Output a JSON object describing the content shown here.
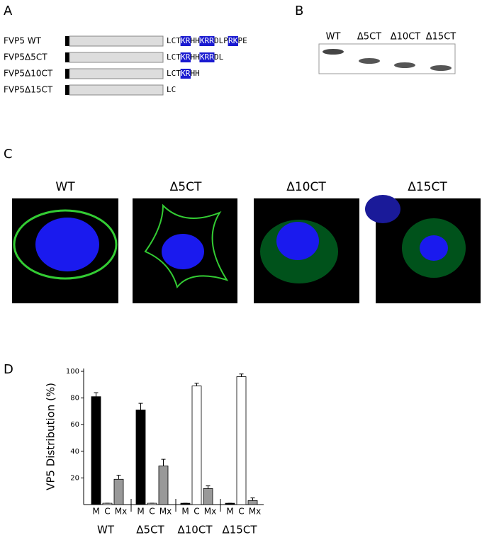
{
  "panels": {
    "a": "A",
    "b": "B",
    "c": "C",
    "d": "D"
  },
  "schematic": {
    "rows": [
      {
        "label": "FVP5 WT",
        "sequence": [
          [
            "LCT",
            false
          ],
          [
            "KR",
            true
          ],
          [
            "HH",
            false
          ],
          [
            "KRR",
            true
          ],
          [
            "DLP",
            false
          ],
          [
            "RK",
            true
          ],
          [
            "PE",
            false
          ]
        ]
      },
      {
        "label": "FVP5Δ5CT",
        "sequence": [
          [
            "LCT",
            false
          ],
          [
            "KR",
            true
          ],
          [
            "HH",
            false
          ],
          [
            "KRR",
            true
          ],
          [
            "DL",
            false
          ]
        ]
      },
      {
        "label": "FVP5Δ10CT",
        "sequence": [
          [
            "LCT",
            false
          ],
          [
            "KR",
            true
          ],
          [
            "HH",
            false
          ]
        ]
      },
      {
        "label": "FVP5Δ15CT",
        "sequence": [
          [
            "LC",
            false
          ]
        ]
      }
    ]
  },
  "gel": {
    "lanes": [
      "WT",
      "Δ5CT",
      "Δ10CT",
      "Δ15CT"
    ]
  },
  "images": {
    "labels": [
      "WT",
      "Δ5CT",
      "Δ10CT",
      "Δ15CT"
    ]
  },
  "chart_data": {
    "type": "grouped_bar",
    "y_label": "VP5 Distribution (%)",
    "categories": [
      "WT",
      "Δ5CT",
      "Δ10CT",
      "Δ15CT"
    ],
    "series": [
      {
        "name": "M",
        "color": "#000000",
        "values": [
          81,
          71,
          1,
          1
        ],
        "errors": [
          3,
          5,
          0,
          0
        ]
      },
      {
        "name": "C",
        "color": "#ffffff",
        "values": [
          1,
          1,
          89,
          96
        ],
        "errors": [
          0,
          0,
          2,
          2
        ]
      },
      {
        "name": "Mx",
        "color": "#999999",
        "values": [
          19,
          29,
          12,
          3
        ],
        "errors": [
          3,
          5,
          2,
          2
        ]
      }
    ],
    "ylim": [
      0,
      100
    ],
    "yticks": [
      20,
      40,
      60,
      80,
      100
    ]
  }
}
